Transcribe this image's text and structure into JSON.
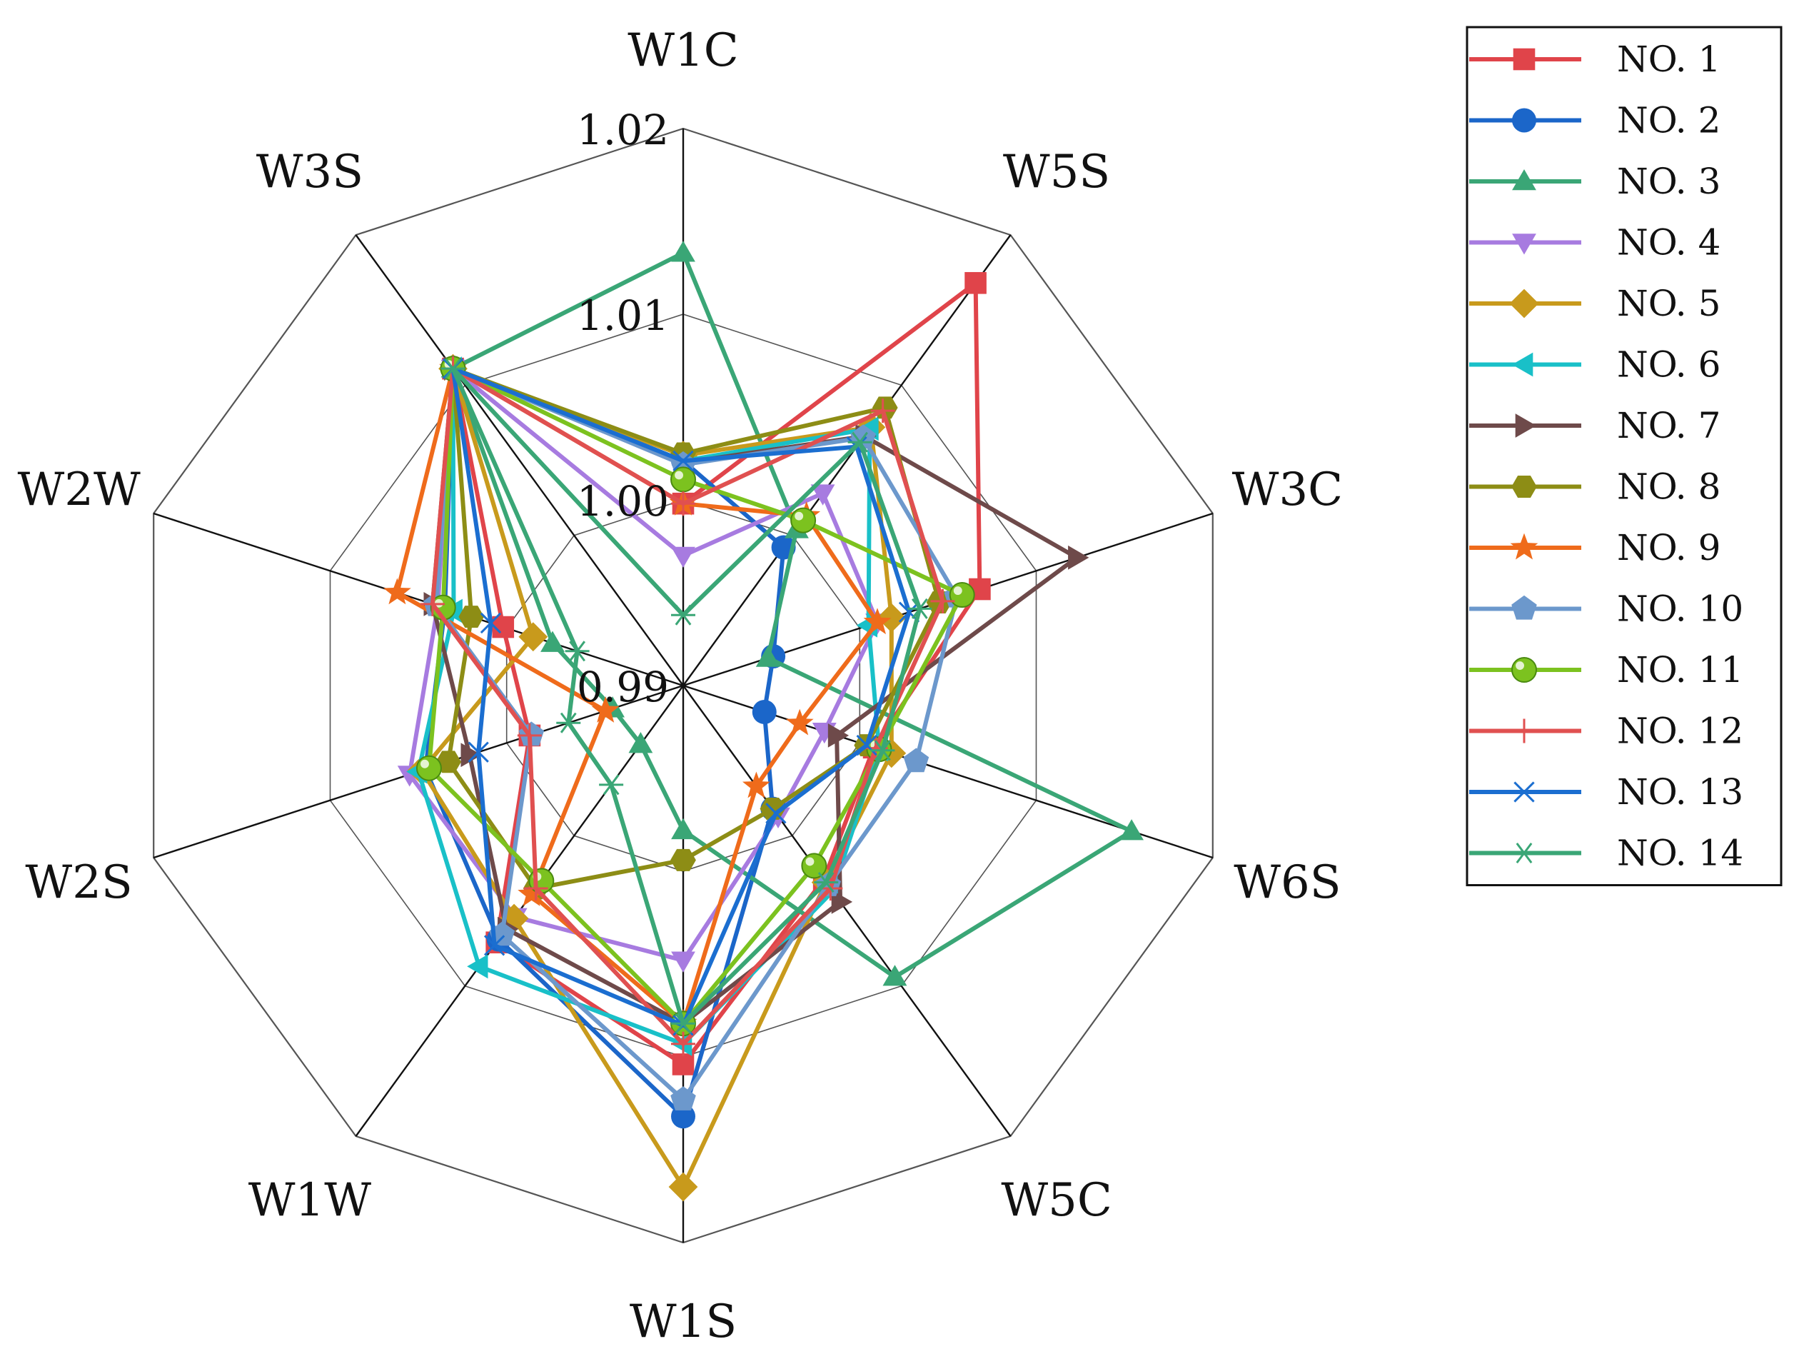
{
  "chart_data": {
    "type": "radar",
    "title": "",
    "axes": [
      "W1C",
      "W5S",
      "W3C",
      "W6S",
      "W5C",
      "W1S",
      "W1W",
      "W2S",
      "W2W",
      "W3S"
    ],
    "radial_ticks": [
      "0.99",
      "1.00",
      "1.01",
      "1.02"
    ],
    "rlim": [
      0.99,
      1.02
    ],
    "grid": true,
    "legend_position": "top-right",
    "series": [
      {
        "name": "NO. 1",
        "color": "#e0444a",
        "marker": "square",
        "values": [
          0.9998,
          1.0168,
          1.0068,
          1.0008,
          1.0029,
          1.0104,
          1.0071,
          0.9987,
          1.0002,
          1.0111
        ]
      },
      {
        "name": "NO. 2",
        "color": "#1b66c9",
        "marker": "circle",
        "values": [
          1.0021,
          0.9992,
          0.9951,
          0.9946,
          0.9982,
          1.0132,
          1.0069,
          1.0046,
          1.0035,
          1.0111
        ]
      },
      {
        "name": "NO. 3",
        "color": "#3aa676",
        "marker": "triangle-up",
        "values": [
          1.0133,
          1.0004,
          0.9948,
          1.0154,
          1.0094,
          0.9978,
          0.9939,
          0.994,
          0.9974,
          1.0111
        ]
      },
      {
        "name": "NO. 4",
        "color": "#a77be0",
        "marker": "triangle-down",
        "values": [
          0.997,
          1.0028,
          1.001,
          0.998,
          0.9987,
          1.0048,
          1.0054,
          1.0055,
          1.0039,
          1.0111
        ]
      },
      {
        "name": "NO. 5",
        "color": "#c89a1c",
        "marker": "diamond",
        "values": [
          1.0024,
          1.0072,
          1.0018,
          1.0018,
          1.0031,
          1.017,
          1.0055,
          1.0048,
          0.9985,
          1.0111
        ]
      },
      {
        "name": "NO. 6",
        "color": "#19c0c8",
        "marker": "triangle-left",
        "values": [
          1.0021,
          1.0071,
          1.0005,
          1.0011,
          1.0037,
          1.0093,
          1.0087,
          1.005,
          1.003,
          1.0111
        ]
      },
      {
        "name": "NO. 7",
        "color": "#6e4a4a",
        "marker": "triangle-right",
        "values": [
          1.002,
          1.0066,
          1.0123,
          0.9987,
          1.0044,
          1.0082,
          1.0062,
          1.0021,
          1.0042,
          1.0111
        ]
      },
      {
        "name": "NO. 8",
        "color": "#8d8d15",
        "marker": "hexagon",
        "values": [
          1.0025,
          1.0085,
          1.0045,
          1.0004,
          0.9982,
          0.9994,
          1.0035,
          1.0033,
          1.002,
          1.0111
        ]
      },
      {
        "name": "NO. 9",
        "color": "#ef6b1b",
        "marker": "star",
        "values": [
          0.9998,
          1.0013,
          1.001,
          0.9966,
          0.9967,
          1.0082,
          1.0039,
          0.9944,
          1.0062,
          1.0111
        ]
      },
      {
        "name": "NO. 10",
        "color": "#6c98cc",
        "marker": "pentagon",
        "values": [
          1.0019,
          1.0065,
          1.0055,
          1.0032,
          1.0033,
          1.0123,
          1.0066,
          0.9986,
          1.004,
          1.0111
        ]
      },
      {
        "name": "NO. 11",
        "color": "#7cc21f",
        "marker": "sphere",
        "values": [
          1.0011,
          1.001,
          1.0058,
          1.0011,
          1.002,
          1.0082,
          1.003,
          1.0044,
          1.0036,
          1.0111
        ]
      },
      {
        "name": "NO. 12",
        "color": "#e05050",
        "marker": "plus",
        "values": [
          0.9998,
          1.0083,
          1.0047,
          1.0009,
          1.0035,
          1.0093,
          1.0035,
          0.9987,
          1.0042,
          1.0111
        ]
      },
      {
        "name": "NO. 13",
        "color": "#1b6ed0",
        "marker": "x",
        "values": [
          1.0021,
          1.0059,
          1.0028,
          1.0004,
          0.9985,
          1.0083,
          1.0073,
          1.0016,
          1.0009,
          1.0111
        ]
      },
      {
        "name": "NO. 14",
        "color": "#3aa676",
        "marker": "asterisk",
        "values": [
          0.9938,
          1.0062,
          1.0034,
          1.0013,
          1.0031,
          1.0082,
          0.9966,
          0.9965,
          0.996,
          1.0111
        ]
      }
    ]
  }
}
